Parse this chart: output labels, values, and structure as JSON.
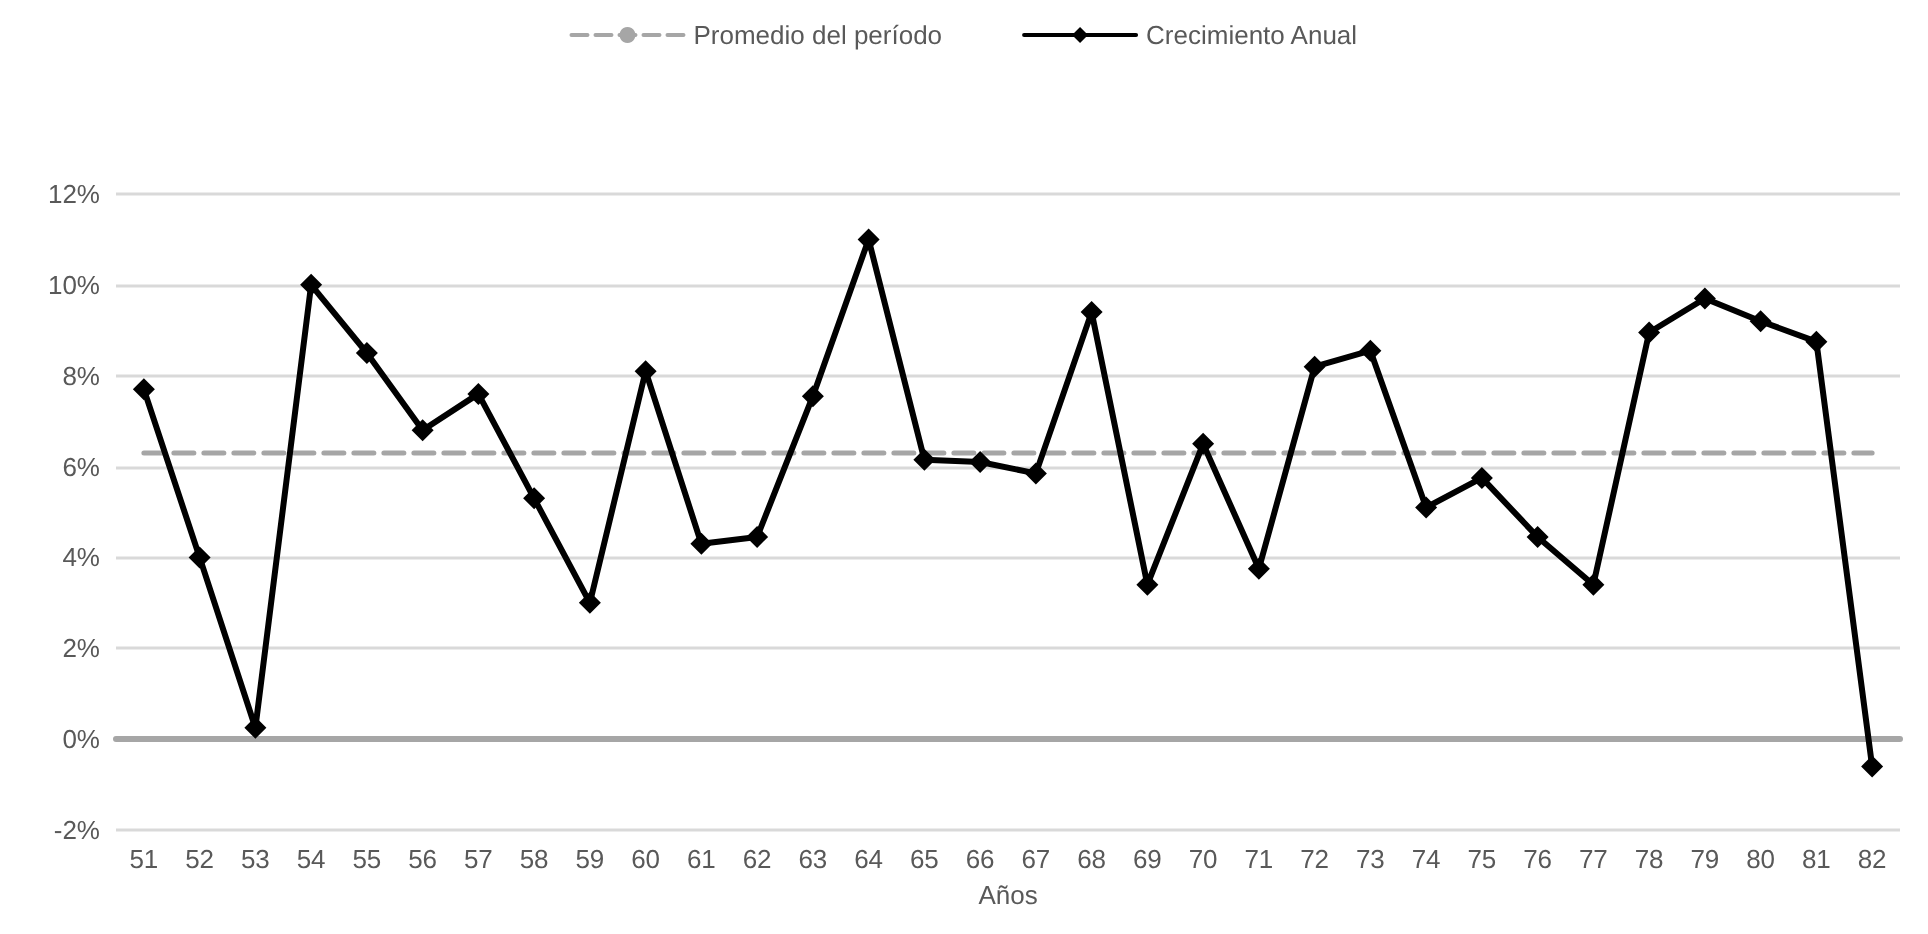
{
  "chart_data": {
    "type": "line",
    "xlabel": "Años",
    "categories": [
      "51",
      "52",
      "53",
      "54",
      "55",
      "56",
      "57",
      "58",
      "59",
      "60",
      "61",
      "62",
      "63",
      "64",
      "65",
      "66",
      "67",
      "68",
      "69",
      "70",
      "71",
      "72",
      "73",
      "74",
      "75",
      "76",
      "77",
      "78",
      "79",
      "80",
      "81",
      "82"
    ],
    "series": [
      {
        "name": "Promedio del período",
        "color": "#a6a6a6",
        "line_style": "dashed",
        "marker": "none",
        "values": [
          6.3,
          6.3,
          6.3,
          6.3,
          6.3,
          6.3,
          6.3,
          6.3,
          6.3,
          6.3,
          6.3,
          6.3,
          6.3,
          6.3,
          6.3,
          6.3,
          6.3,
          6.3,
          6.3,
          6.3,
          6.3,
          6.3,
          6.3,
          6.3,
          6.3,
          6.3,
          6.3,
          6.3,
          6.3,
          6.3,
          6.3,
          6.3
        ]
      },
      {
        "name": "Crecimiento Anual",
        "color": "#000000",
        "line_style": "solid",
        "marker": "diamond",
        "values": [
          7.7,
          4.0,
          0.25,
          10.0,
          8.5,
          6.8,
          7.6,
          5.3,
          3.0,
          8.1,
          4.3,
          4.45,
          7.55,
          11.0,
          6.15,
          6.1,
          5.85,
          9.4,
          3.4,
          6.5,
          3.75,
          8.2,
          8.55,
          5.1,
          5.75,
          4.45,
          3.4,
          8.95,
          9.7,
          9.2,
          8.75,
          -0.6
        ]
      }
    ],
    "ylim": [
      -2,
      12
    ],
    "yticks": [
      {
        "value": -2,
        "label": "-2%"
      },
      {
        "value": 0,
        "label": "0%"
      },
      {
        "value": 2,
        "label": "2%"
      },
      {
        "value": 4,
        "label": "4%"
      },
      {
        "value": 6,
        "label": "6%"
      },
      {
        "value": 8,
        "label": "8%"
      },
      {
        "value": 10,
        "label": "10%"
      },
      {
        "value": 12,
        "label": "12%"
      }
    ],
    "grid": "y",
    "legend": "top"
  }
}
